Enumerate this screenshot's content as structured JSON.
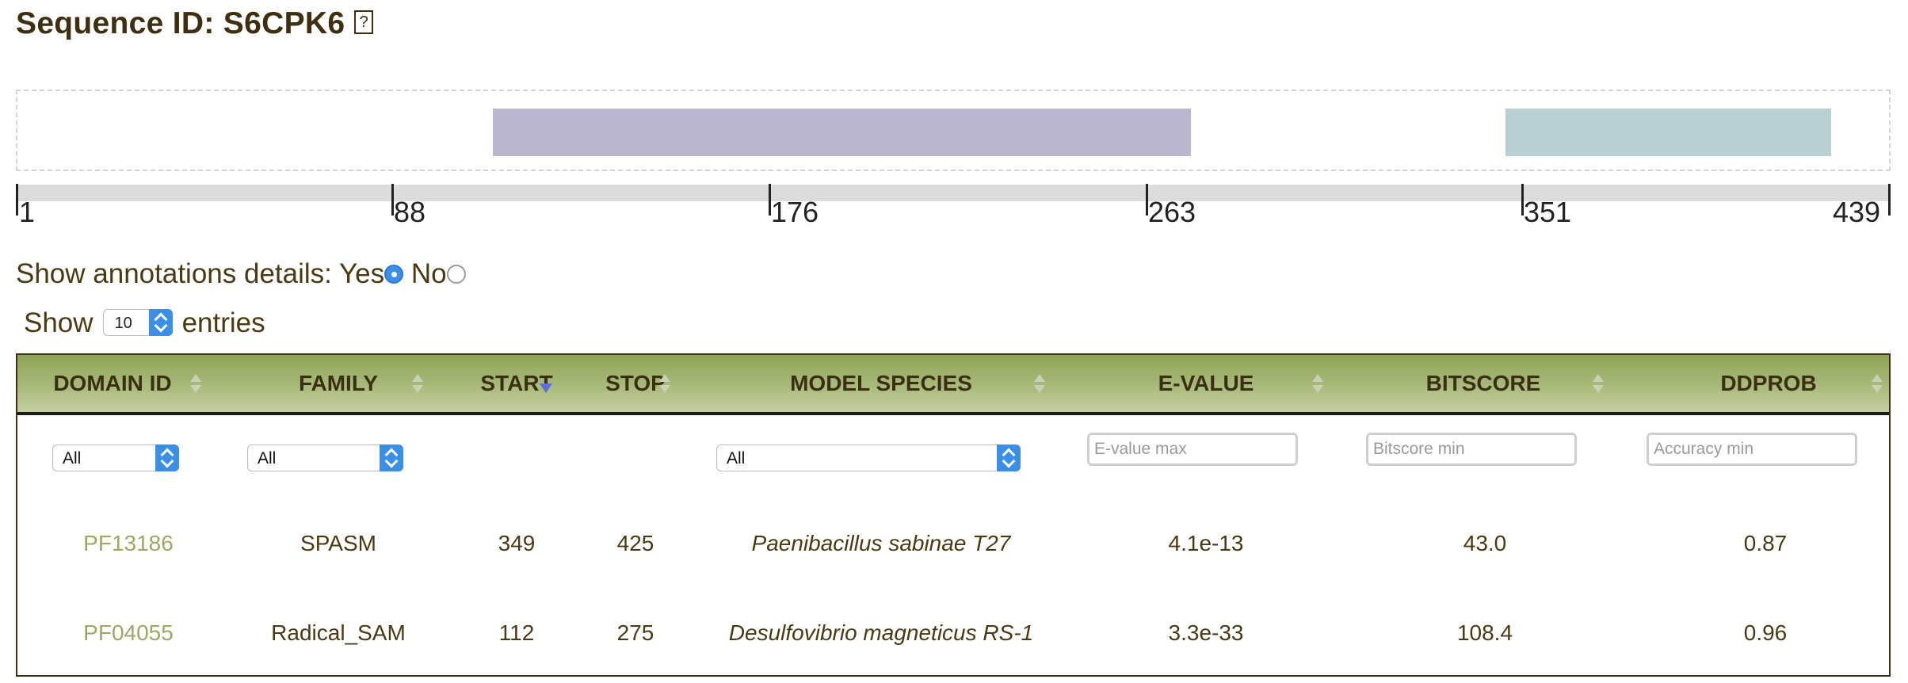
{
  "header": {
    "title": "Sequence ID: S6CPK6",
    "help_icon": "help-icon"
  },
  "domain_track": {
    "length": 439,
    "domains": [
      {
        "id": "PF04055",
        "start": 112,
        "stop": 275,
        "color": "#bcb7d0"
      },
      {
        "id": "PF13186",
        "start": 349,
        "stop": 425,
        "color": "#b8d0d2"
      }
    ],
    "ticks": [
      "1",
      "88",
      "176",
      "263",
      "351",
      "439"
    ]
  },
  "annotations": {
    "label": "Show annotations details:",
    "yes_label": "Yes",
    "no_label": "No",
    "selected": "yes"
  },
  "length_menu": {
    "prefix": "Show",
    "value": "10",
    "suffix": "entries"
  },
  "table": {
    "columns": [
      "DOMAIN ID",
      "FAMILY",
      "START",
      "STOP",
      "MODEL SPECIES",
      "E-VALUE",
      "BITSCORE",
      "DDPROB"
    ],
    "filters": {
      "domain_id": "All",
      "family": "All",
      "model_species": "All",
      "evalue_placeholder": "E-value max",
      "bitscore_placeholder": "Bitscore min",
      "accuracy_placeholder": "Accuracy min"
    },
    "rows": [
      {
        "domain_id": "PF13186",
        "family": "SPASM",
        "start": "349",
        "stop": "425",
        "species": "Paenibacillus sabinae T27",
        "evalue": "4.1e-13",
        "bitscore": "43.0",
        "ddprob": "0.87"
      },
      {
        "domain_id": "PF04055",
        "family": "Radical_SAM",
        "start": "112",
        "stop": "275",
        "species": "Desulfovibrio magneticus RS-1",
        "evalue": "3.3e-33",
        "bitscore": "108.4",
        "ddprob": "0.96"
      }
    ],
    "header_gradient": [
      "#8fa356",
      "#c5d0a2"
    ],
    "link_color": "#9aaa62"
  }
}
